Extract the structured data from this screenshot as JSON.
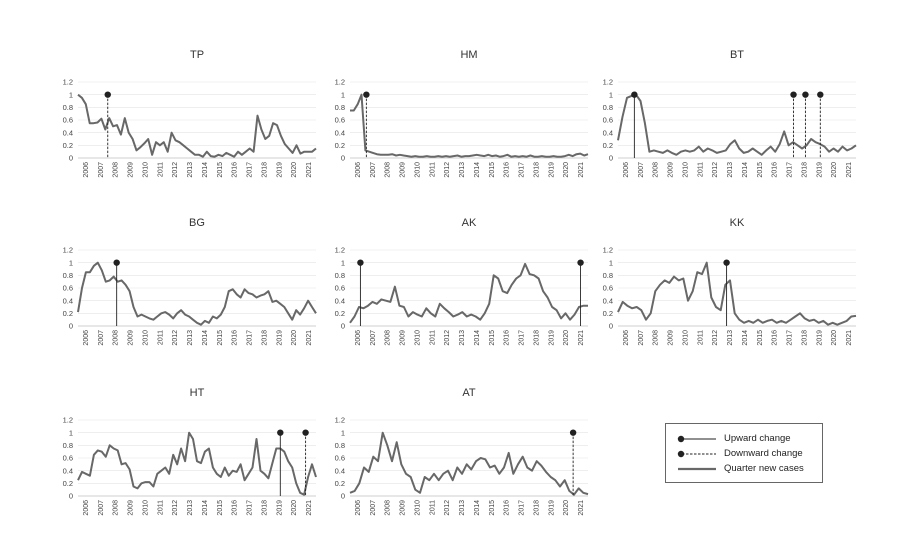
{
  "chart_data": [
    {
      "type": "line",
      "title": "TP",
      "x_start": 2006,
      "x_end": 2022,
      "ylim": [
        0,
        1.2
      ],
      "yticks": [
        0,
        0.2,
        0.4,
        0.6,
        0.8,
        1,
        1.2
      ],
      "xticks": [
        "2006",
        "2007",
        "2008",
        "2009",
        "2010",
        "2011",
        "2012",
        "2013",
        "2014",
        "2015",
        "2016",
        "2017",
        "2018",
        "2019",
        "2020",
        "2021"
      ],
      "series": [
        {
          "values": [
            1.0,
            0.95,
            0.85,
            0.55,
            0.55,
            0.56,
            0.62,
            0.45,
            0.63,
            0.5,
            0.52,
            0.37,
            0.63,
            0.4,
            0.3,
            0.12,
            0.17,
            0.23,
            0.3,
            0.05,
            0.25,
            0.2,
            0.25,
            0.1,
            0.4,
            0.28,
            0.25,
            0.2,
            0.15,
            0.1,
            0.05,
            0.05,
            0.02,
            0.1,
            0.03,
            0.02,
            0.05,
            0.03,
            0.08,
            0.05,
            0.02,
            0.1,
            0.05,
            0.1,
            0.15,
            0.1,
            0.67,
            0.45,
            0.3,
            0.35,
            0.55,
            0.52,
            0.35,
            0.22,
            0.15,
            0.08,
            0.2,
            0.07,
            0.1,
            0.1,
            0.1,
            0.15
          ]
        }
      ],
      "changes": [
        {
          "x": 2008.0,
          "direction": "down"
        }
      ]
    },
    {
      "type": "line",
      "title": "HM",
      "x_start": 2006,
      "x_end": 2022,
      "ylim": [
        0,
        1.2
      ],
      "yticks": [
        0,
        0.2,
        0.4,
        0.6,
        0.8,
        1,
        1.2
      ],
      "xticks": [
        "2006",
        "2007",
        "2008",
        "2009",
        "2010",
        "2011",
        "2012",
        "2013",
        "2014",
        "2015",
        "2016",
        "2017",
        "2018",
        "2019",
        "2020",
        "2021"
      ],
      "series": [
        {
          "values": [
            0.75,
            0.75,
            0.85,
            1.0,
            0.12,
            0.1,
            0.08,
            0.06,
            0.05,
            0.05,
            0.05,
            0.06,
            0.04,
            0.05,
            0.04,
            0.03,
            0.02,
            0.03,
            0.02,
            0.02,
            0.03,
            0.02,
            0.02,
            0.03,
            0.02,
            0.03,
            0.02,
            0.03,
            0.04,
            0.02,
            0.03,
            0.03,
            0.04,
            0.05,
            0.04,
            0.03,
            0.05,
            0.03,
            0.04,
            0.02,
            0.03,
            0.05,
            0.02,
            0.03,
            0.02,
            0.03,
            0.02,
            0.04,
            0.02,
            0.02,
            0.03,
            0.02,
            0.02,
            0.03,
            0.02,
            0.02,
            0.03,
            0.05,
            0.03,
            0.06,
            0.07,
            0.04,
            0.06
          ]
        }
      ],
      "changes": [
        {
          "x": 2007.1,
          "direction": "down"
        }
      ]
    },
    {
      "type": "line",
      "title": "BT",
      "x_start": 2006,
      "x_end": 2022,
      "ylim": [
        0,
        1.2
      ],
      "yticks": [
        0,
        0.2,
        0.4,
        0.6,
        0.8,
        1,
        1.2
      ],
      "xticks": [
        "2006",
        "2007",
        "2008",
        "2009",
        "2010",
        "2011",
        "2012",
        "2013",
        "2014",
        "2015",
        "2016",
        "2017",
        "2018",
        "2019",
        "2020",
        "2021"
      ],
      "series": [
        {
          "values": [
            0.28,
            0.65,
            0.95,
            0.98,
            1.0,
            0.9,
            0.55,
            0.1,
            0.12,
            0.1,
            0.08,
            0.12,
            0.08,
            0.05,
            0.1,
            0.12,
            0.1,
            0.12,
            0.18,
            0.1,
            0.15,
            0.12,
            0.08,
            0.1,
            0.12,
            0.22,
            0.28,
            0.15,
            0.08,
            0.1,
            0.15,
            0.1,
            0.05,
            0.12,
            0.18,
            0.1,
            0.22,
            0.42,
            0.2,
            0.25,
            0.2,
            0.15,
            0.2,
            0.3,
            0.25,
            0.22,
            0.18,
            0.1,
            0.15,
            0.1,
            0.18,
            0.12,
            0.15,
            0.2
          ]
        }
      ],
      "changes": [
        {
          "x": 2007.1,
          "direction": "up"
        },
        {
          "x": 2017.8,
          "direction": "down"
        },
        {
          "x": 2018.6,
          "direction": "down"
        },
        {
          "x": 2019.6,
          "direction": "down"
        }
      ]
    },
    {
      "type": "line",
      "title": "BG",
      "x_start": 2006,
      "x_end": 2022,
      "ylim": [
        0,
        1.2
      ],
      "yticks": [
        0,
        0.2,
        0.4,
        0.6,
        0.8,
        1,
        1.2
      ],
      "xticks": [
        "2006",
        "2007",
        "2008",
        "2009",
        "2010",
        "2011",
        "2012",
        "2013",
        "2014",
        "2015",
        "2016",
        "2017",
        "2018",
        "2019",
        "2020",
        "2021"
      ],
      "series": [
        {
          "values": [
            0.22,
            0.6,
            0.85,
            0.85,
            0.95,
            1.0,
            0.88,
            0.7,
            0.72,
            0.78,
            0.7,
            0.72,
            0.65,
            0.55,
            0.3,
            0.15,
            0.18,
            0.15,
            0.12,
            0.1,
            0.15,
            0.2,
            0.22,
            0.18,
            0.12,
            0.2,
            0.25,
            0.18,
            0.15,
            0.1,
            0.05,
            0.02,
            0.08,
            0.05,
            0.15,
            0.12,
            0.18,
            0.3,
            0.55,
            0.58,
            0.5,
            0.45,
            0.58,
            0.52,
            0.5,
            0.45,
            0.48,
            0.5,
            0.55,
            0.38,
            0.4,
            0.35,
            0.3,
            0.2,
            0.1,
            0.25,
            0.18,
            0.28,
            0.4,
            0.3,
            0.2
          ]
        }
      ],
      "changes": [
        {
          "x": 2008.6,
          "direction": "up"
        }
      ]
    },
    {
      "type": "line",
      "title": "AK",
      "x_start": 2006,
      "x_end": 2022,
      "ylim": [
        0,
        1.2
      ],
      "yticks": [
        0,
        0.2,
        0.4,
        0.6,
        0.8,
        1,
        1.2
      ],
      "xticks": [
        "2006",
        "2007",
        "2008",
        "2009",
        "2010",
        "2011",
        "2012",
        "2013",
        "2014",
        "2015",
        "2016",
        "2017",
        "2018",
        "2019",
        "2020",
        "2021"
      ],
      "series": [
        {
          "values": [
            0.05,
            0.15,
            0.3,
            0.28,
            0.32,
            0.38,
            0.35,
            0.42,
            0.4,
            0.38,
            0.62,
            0.32,
            0.3,
            0.15,
            0.22,
            0.18,
            0.15,
            0.28,
            0.2,
            0.15,
            0.35,
            0.28,
            0.22,
            0.15,
            0.18,
            0.22,
            0.15,
            0.18,
            0.15,
            0.1,
            0.2,
            0.35,
            0.8,
            0.75,
            0.55,
            0.52,
            0.65,
            0.75,
            0.8,
            0.98,
            0.82,
            0.8,
            0.75,
            0.55,
            0.45,
            0.3,
            0.25,
            0.12,
            0.2,
            0.1,
            0.18,
            0.3,
            0.32,
            0.32
          ]
        }
      ],
      "changes": [
        {
          "x": 2006.7,
          "direction": "up"
        },
        {
          "x": 2021.5,
          "direction": "up"
        }
      ]
    },
    {
      "type": "line",
      "title": "KK",
      "x_start": 2006,
      "x_end": 2022,
      "ylim": [
        0,
        1.2
      ],
      "yticks": [
        0,
        0.2,
        0.4,
        0.6,
        0.8,
        1,
        1.2
      ],
      "xticks": [
        "2006",
        "2007",
        "2008",
        "2009",
        "2010",
        "2011",
        "2012",
        "2013",
        "2014",
        "2015",
        "2016",
        "2017",
        "2018",
        "2019",
        "2020",
        "2021"
      ],
      "series": [
        {
          "values": [
            0.22,
            0.38,
            0.32,
            0.28,
            0.3,
            0.25,
            0.1,
            0.2,
            0.55,
            0.65,
            0.72,
            0.68,
            0.78,
            0.72,
            0.75,
            0.4,
            0.55,
            0.85,
            0.82,
            1.0,
            0.45,
            0.3,
            0.25,
            0.65,
            0.72,
            0.2,
            0.1,
            0.05,
            0.08,
            0.05,
            0.1,
            0.05,
            0.08,
            0.1,
            0.05,
            0.08,
            0.05,
            0.1,
            0.15,
            0.2,
            0.12,
            0.08,
            0.1,
            0.05,
            0.08,
            0.02,
            0.05,
            0.02,
            0.05,
            0.08,
            0.15,
            0.16
          ]
        }
      ],
      "changes": [
        {
          "x": 2013.3,
          "direction": "up"
        }
      ]
    },
    {
      "type": "line",
      "title": "HT",
      "x_start": 2006,
      "x_end": 2022,
      "ylim": [
        0,
        1.2
      ],
      "yticks": [
        0,
        0.2,
        0.4,
        0.6,
        0.8,
        1,
        1.2
      ],
      "xticks": [
        "2006",
        "2007",
        "2008",
        "2009",
        "2010",
        "2011",
        "2012",
        "2013",
        "2014",
        "2015",
        "2016",
        "2017",
        "2018",
        "2019",
        "2020",
        "2021"
      ],
      "series": [
        {
          "values": [
            0.25,
            0.38,
            0.35,
            0.32,
            0.65,
            0.72,
            0.7,
            0.62,
            0.8,
            0.75,
            0.72,
            0.5,
            0.52,
            0.42,
            0.15,
            0.12,
            0.2,
            0.22,
            0.22,
            0.15,
            0.35,
            0.4,
            0.45,
            0.35,
            0.65,
            0.5,
            0.75,
            0.55,
            1.0,
            0.9,
            0.55,
            0.52,
            0.7,
            0.75,
            0.45,
            0.35,
            0.3,
            0.45,
            0.32,
            0.4,
            0.38,
            0.5,
            0.25,
            0.35,
            0.45,
            0.9,
            0.4,
            0.35,
            0.28,
            0.52,
            0.75,
            0.75,
            0.7,
            0.55,
            0.45,
            0.2,
            0.05,
            0.02,
            0.3,
            0.5,
            0.3
          ]
        }
      ],
      "changes": [
        {
          "x": 2019.6,
          "direction": "up"
        },
        {
          "x": 2021.3,
          "direction": "down"
        }
      ]
    },
    {
      "type": "line",
      "title": "AT",
      "x_start": 2006,
      "x_end": 2022,
      "ylim": [
        0,
        1.2
      ],
      "yticks": [
        0,
        0.2,
        0.4,
        0.6,
        0.8,
        1,
        1.2
      ],
      "xticks": [
        "2006",
        "2007",
        "2008",
        "2009",
        "2010",
        "2011",
        "2012",
        "2013",
        "2014",
        "2015",
        "2016",
        "2017",
        "2018",
        "2019",
        "2020",
        "2021"
      ],
      "series": [
        {
          "values": [
            0.05,
            0.08,
            0.2,
            0.45,
            0.38,
            0.62,
            0.55,
            1.0,
            0.8,
            0.55,
            0.85,
            0.5,
            0.35,
            0.3,
            0.1,
            0.05,
            0.3,
            0.25,
            0.35,
            0.25,
            0.35,
            0.4,
            0.25,
            0.45,
            0.35,
            0.5,
            0.42,
            0.55,
            0.6,
            0.58,
            0.45,
            0.48,
            0.35,
            0.45,
            0.68,
            0.35,
            0.5,
            0.62,
            0.45,
            0.4,
            0.55,
            0.48,
            0.38,
            0.3,
            0.25,
            0.15,
            0.25,
            0.08,
            0.02,
            0.12,
            0.05,
            0.03
          ]
        }
      ],
      "changes": [
        {
          "x": 2021.0,
          "direction": "down"
        }
      ]
    }
  ],
  "legend": {
    "items": [
      {
        "label": "Upward change",
        "symbol": "up"
      },
      {
        "label": "Downward change",
        "symbol": "down"
      },
      {
        "label": "Quarter new cases",
        "symbol": "line"
      }
    ]
  }
}
